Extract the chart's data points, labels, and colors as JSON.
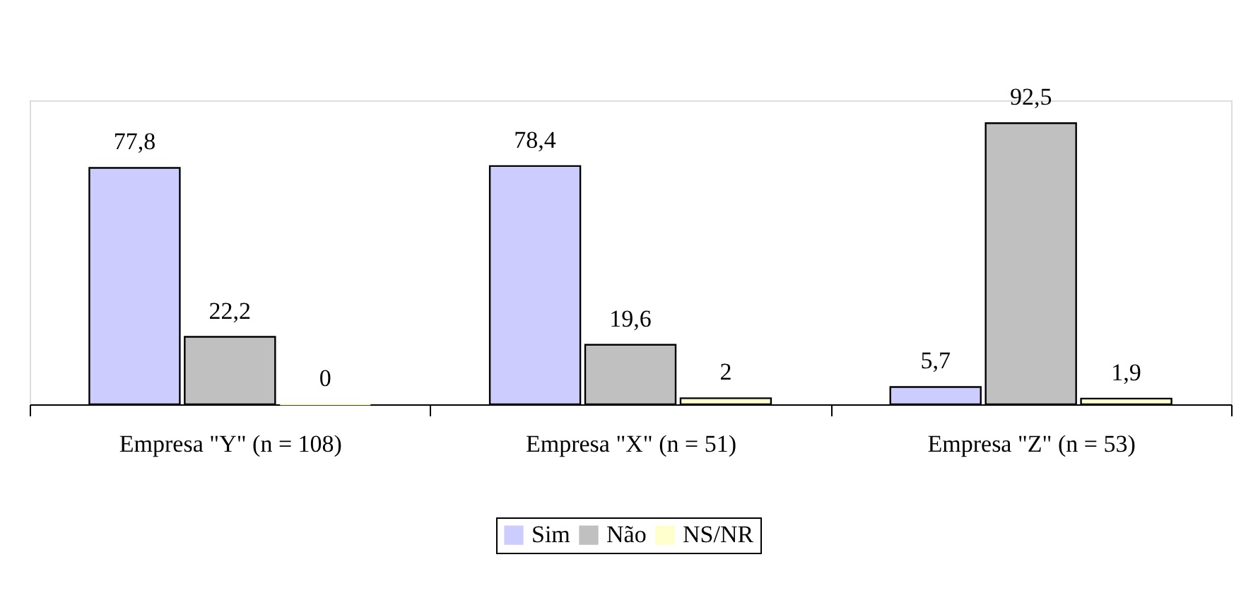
{
  "chart_data": {
    "type": "bar",
    "categories": [
      "Empresa \"Y\" (n = 108)",
      "Empresa \"X\" (n = 51)",
      "Empresa \"Z\" (n = 53)"
    ],
    "series": [
      {
        "name": "Sim",
        "color": "#ccccff",
        "values": [
          77.8,
          78.4,
          5.7
        ],
        "value_labels": [
          "77,8",
          "78,4",
          "5,7"
        ]
      },
      {
        "name": "Não",
        "color": "#c0c0c0",
        "values": [
          22.2,
          19.6,
          92.5
        ],
        "value_labels": [
          "22,2",
          "19,6",
          "92,5"
        ]
      },
      {
        "name": "NS/NR",
        "color": "#ffffcc",
        "values": [
          0,
          2,
          1.9
        ],
        "value_labels": [
          "0",
          "2",
          "1,9"
        ]
      }
    ],
    "legend": "bottom",
    "grid": false
  }
}
